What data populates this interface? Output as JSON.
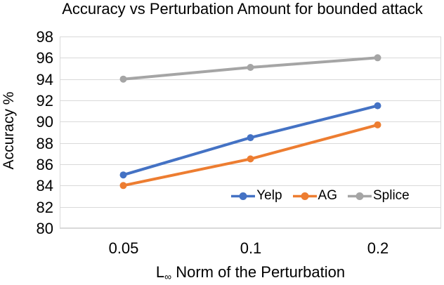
{
  "title": "Accuracy vs Perturbation Amount for bounded attack",
  "chart_data": {
    "type": "line",
    "categories": [
      "0.05",
      "0.1",
      "0.2"
    ],
    "series": [
      {
        "name": "Yelp",
        "color": "#4472C4",
        "values": [
          85,
          88.5,
          91.5
        ]
      },
      {
        "name": "AG",
        "color": "#ED7D31",
        "values": [
          84,
          86.5,
          89.7
        ]
      },
      {
        "name": "Splice",
        "color": "#A5A5A5",
        "values": [
          94,
          95.1,
          96
        ]
      }
    ],
    "title": "Accuracy vs Perturbation Amount for bounded attack",
    "xlabel": "L∞ Norm of the Perturbation",
    "xlabel_parts": {
      "base": "L",
      "sub": "∞",
      "rest": " Norm of the Perturbation"
    },
    "ylabel": "Accuracy %",
    "ylim": [
      80,
      98
    ],
    "ytick_step": 2,
    "yticks": [
      "98",
      "96",
      "94",
      "92",
      "90",
      "88",
      "86",
      "84",
      "82",
      "80"
    ],
    "grid": true,
    "gridline_color": "#D9D9D9",
    "marker": "circle",
    "legend_position": "inside-bottom-right",
    "legend_labels": [
      "Yelp",
      "AG",
      "Splice"
    ]
  }
}
